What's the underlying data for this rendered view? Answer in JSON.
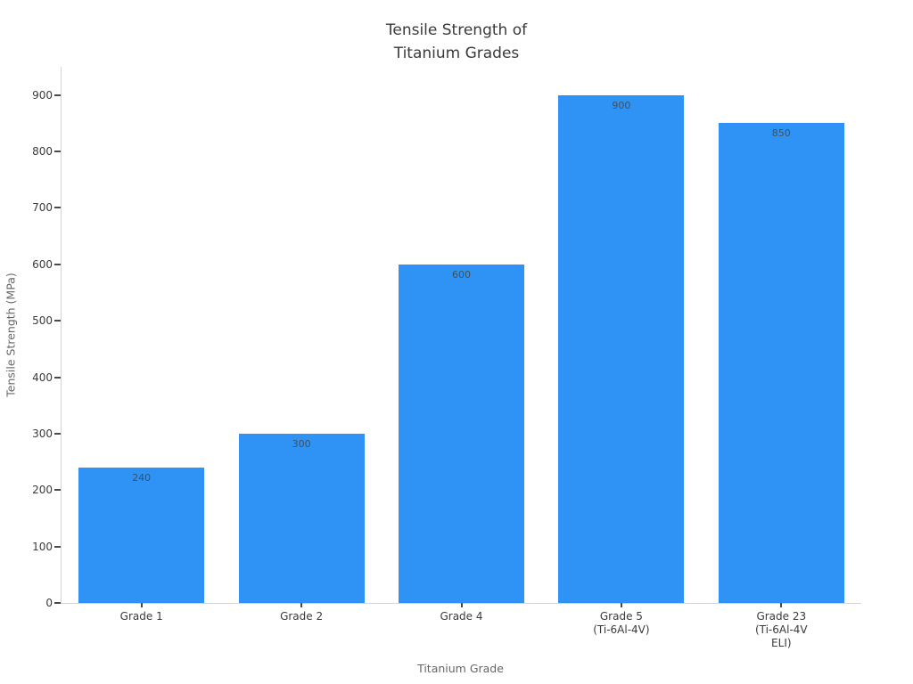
{
  "chart_data": {
    "type": "bar",
    "title": "Tensile Strength of\nTitanium Grades",
    "xlabel": "Titanium Grade",
    "ylabel": "Tensile Strength (MPa)",
    "categories": [
      "Grade 1",
      "Grade 2",
      "Grade 4",
      "Grade 5\n(Ti-6Al-4V)",
      "Grade 23\n(Ti-6Al-4V\nELI)"
    ],
    "values": [
      240,
      300,
      600,
      900,
      850
    ],
    "value_labels": [
      "240",
      "300",
      "600",
      "900",
      "850"
    ],
    "ylim": [
      0,
      950
    ],
    "yticks": [
      0,
      100,
      200,
      300,
      400,
      500,
      600,
      700,
      800,
      900
    ],
    "grid": false,
    "legend": "none",
    "bar_color": "#2e93f5"
  },
  "colors": {
    "bar": "#2e93f5",
    "axis_line": "#d4d4d4",
    "tick_mark": "#4a4a4a",
    "tick_text": "#3b3b3b",
    "axis_title_text": "#666666",
    "title_text": "#3a3a3a",
    "background": "#ffffff"
  }
}
